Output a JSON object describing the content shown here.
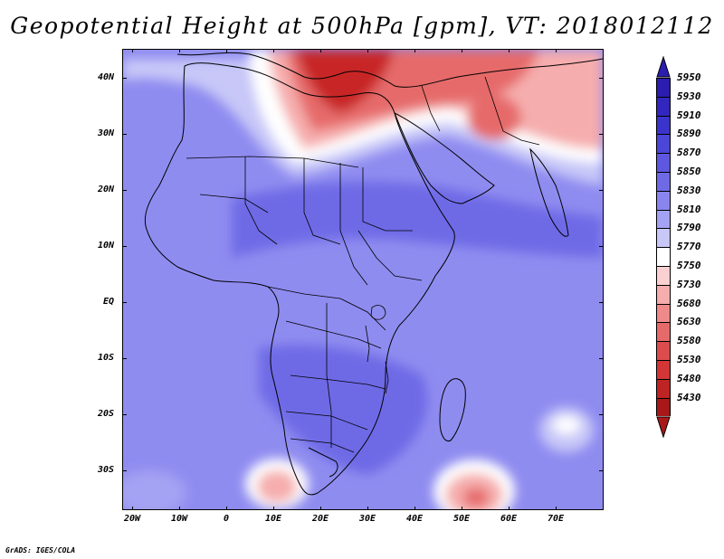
{
  "title": "Geopotential Height at 500hPa [gpm], VT: 2018012112",
  "credit": "GrADS: IGES/COLA",
  "axes": {
    "x_ticks": [
      "20W",
      "10W",
      "0",
      "10E",
      "20E",
      "30E",
      "40E",
      "50E",
      "60E",
      "70E"
    ],
    "y_ticks": [
      "40N",
      "30N",
      "20N",
      "10N",
      "EQ",
      "10S",
      "20S",
      "30S"
    ]
  },
  "colorbar": {
    "levels": [
      "5950",
      "5930",
      "5910",
      "5890",
      "5870",
      "5850",
      "5830",
      "5810",
      "5790",
      "5770",
      "5750",
      "5730",
      "5680",
      "5630",
      "5580",
      "5530",
      "5480",
      "5430"
    ],
    "colors": [
      "#2a1db0",
      "#3127bf",
      "#3a33cc",
      "#4c46d8",
      "#5d58df",
      "#6e6ae6",
      "#8886ee",
      "#a4a2f3",
      "#c8c7f8",
      "#ffffff",
      "#fbd0d0",
      "#f6adad",
      "#ef8a8a",
      "#e66a6a",
      "#dd4c4c",
      "#d23636",
      "#bf2424",
      "#a81818"
    ],
    "top_arrow_color": "#2a1db0",
    "bottom_arrow_color": "#a81818"
  },
  "map_colors": {
    "base": "#8f8cf0",
    "dark_blue": "#6e6ae6",
    "light_blue": "#a4a2f3",
    "pale_blue": "#c8c7f8",
    "white": "#ffffff",
    "light_red": "#f6adad",
    "mid_red": "#e66a6a",
    "dark_red": "#c82828"
  }
}
